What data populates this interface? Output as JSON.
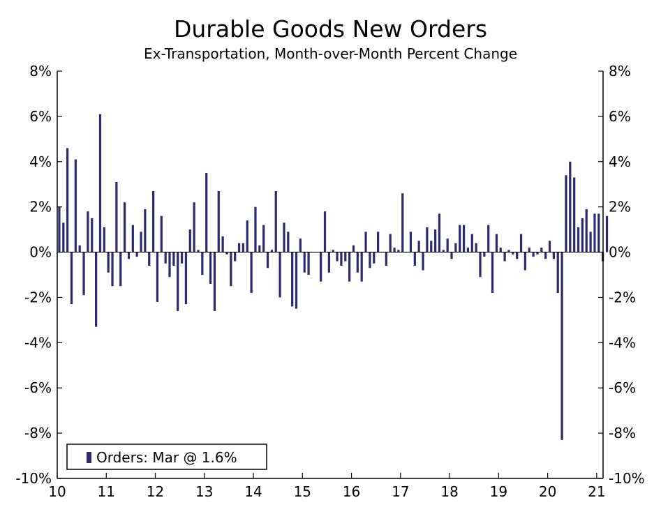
{
  "chart_data": {
    "type": "bar",
    "title": "Durable Goods New Orders",
    "subtitle": "Ex-Transportation, Month-over-Month Percent Change",
    "xlabel": "",
    "ylabel": "",
    "ylim": [
      -10,
      8
    ],
    "y_ticks": [
      8,
      6,
      4,
      2,
      0,
      -2,
      -4,
      -6,
      -8,
      -10
    ],
    "y_tick_labels": [
      "8%",
      "6%",
      "4%",
      "2%",
      "0%",
      "-2%",
      "-4%",
      "-6%",
      "-8%",
      "-10%"
    ],
    "x_tick_labels": [
      "10",
      "11",
      "12",
      "13",
      "14",
      "15",
      "16",
      "17",
      "18",
      "19",
      "20",
      "21"
    ],
    "x_tick_years": [
      2010,
      2011,
      2012,
      2013,
      2014,
      2015,
      2016,
      2017,
      2018,
      2019,
      2020,
      2021
    ],
    "start": "2010-01",
    "end": "2021-03",
    "bar_color": "#2d2a6e",
    "legend": {
      "label": "Orders: Mar @ 1.6%",
      "position": "bottom-left"
    },
    "series": [
      {
        "name": "Orders",
        "values": [
          2.0,
          1.3,
          4.6,
          -2.3,
          4.1,
          0.3,
          -1.9,
          1.8,
          1.5,
          -3.3,
          6.1,
          1.1,
          -0.9,
          -1.5,
          3.1,
          -1.5,
          2.2,
          -0.3,
          1.2,
          -0.2,
          0.9,
          1.9,
          -0.6,
          2.7,
          -2.2,
          1.6,
          -0.5,
          -1.1,
          -0.6,
          -2.6,
          -0.5,
          -2.3,
          1.0,
          2.2,
          0.1,
          -1.0,
          3.5,
          -1.4,
          -2.6,
          2.7,
          0.7,
          -0.1,
          -1.5,
          -0.4,
          0.4,
          0.4,
          1.4,
          -1.8,
          2.0,
          0.3,
          1.2,
          -0.7,
          0.1,
          2.7,
          -2.0,
          1.3,
          0.9,
          -2.4,
          -2.5,
          0.6,
          -0.9,
          -1.0,
          0.0,
          0.0,
          -1.3,
          1.8,
          -0.9,
          0.1,
          -0.4,
          -0.6,
          -0.4,
          -1.3,
          0.3,
          -0.9,
          -1.3,
          0.9,
          -0.7,
          -0.5,
          0.9,
          0.0,
          -0.6,
          0.8,
          0.2,
          0.1,
          2.6,
          0.0,
          0.9,
          -0.6,
          0.5,
          -0.8,
          1.1,
          0.5,
          1.0,
          1.7,
          0.1,
          0.6,
          -0.3,
          0.4,
          1.2,
          1.2,
          0.2,
          0.8,
          0.4,
          -1.1,
          -0.2,
          1.2,
          -1.8,
          0.8,
          0.2,
          -0.4,
          0.1,
          -0.1,
          -0.3,
          0.8,
          -0.8,
          0.2,
          -0.2,
          -0.1,
          0.2,
          -0.3,
          0.5,
          -0.3,
          -1.8,
          -8.3,
          3.4,
          4.0,
          3.3,
          1.1,
          1.5,
          1.9,
          0.9,
          1.7,
          1.7,
          -0.4,
          1.6
        ]
      }
    ]
  }
}
